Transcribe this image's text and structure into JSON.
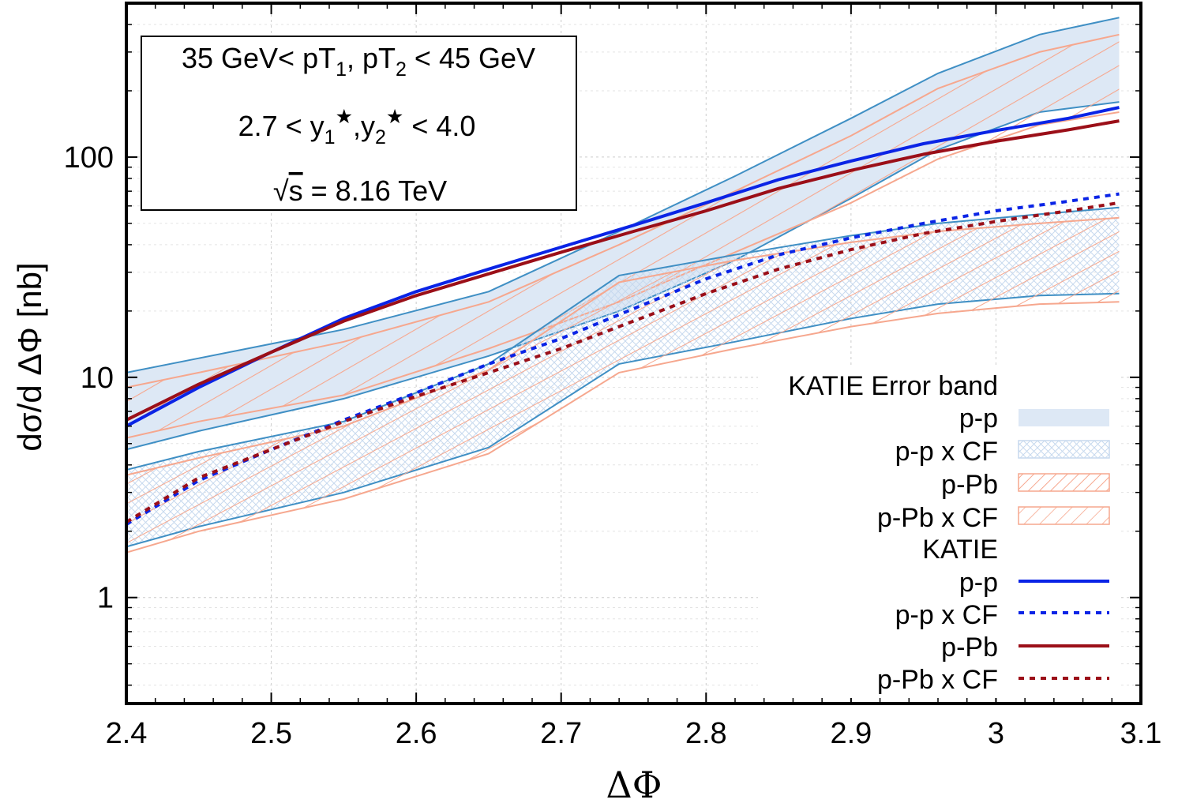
{
  "chart_data": {
    "type": "line",
    "title": "",
    "xlabel": "ΔΦ",
    "ylabel": "dσ/d ΔΦ [nb]",
    "xlim": [
      2.4,
      3.1
    ],
    "ylim": [
      0.33,
      500
    ],
    "yscale": "log",
    "grid": true,
    "x_ticks": [
      {
        "v": 2.4,
        "label": "2.4"
      },
      {
        "v": 2.5,
        "label": "2.5"
      },
      {
        "v": 2.6,
        "label": "2.6"
      },
      {
        "v": 2.7,
        "label": "2.7"
      },
      {
        "v": 2.8,
        "label": "2.8"
      },
      {
        "v": 2.9,
        "label": "2.9"
      },
      {
        "v": 3.0,
        "label": "3"
      },
      {
        "v": 3.1,
        "label": "3.1"
      }
    ],
    "y_ticks": [
      {
        "v": 1,
        "label": "1"
      },
      {
        "v": 10,
        "label": "10"
      },
      {
        "v": 100,
        "label": "100"
      }
    ],
    "info_box": {
      "line1": {
        "pre": "35 GeV< pT",
        "sub1": "1",
        "mid": ", pT",
        "sub2": "2",
        "post": " < 45 GeV"
      },
      "line2": {
        "pre": "2.7 < y",
        "sub1": "1",
        "sup1": "★",
        "mid": ",y",
        "sub2": "2",
        "sup2": "★",
        "post": " < 4.0"
      },
      "line3": {
        "sqrt": "√",
        "s": "s",
        "post": " = 8.16 TeV"
      }
    },
    "legend": {
      "position": "bottom-right",
      "band_header": "KATIE Error band",
      "line_header": "KATIE",
      "band_entries": [
        "p-p",
        "p-p x CF",
        "p-Pb",
        "p-Pb x CF"
      ],
      "line_entries": [
        "p-p",
        "p-p x CF",
        "p-Pb",
        "p-Pb x CF"
      ]
    },
    "colors": {
      "pp": "#0a24e6",
      "pPb": "#9b0f18",
      "band_fill": "#dde8f5",
      "band_edge": "#3f8fc4",
      "hatch": "#f6a78e",
      "crosshatch": "#c7d9ee"
    },
    "bands": [
      {
        "name": "p-p",
        "style": "fill",
        "x": [
          2.4,
          2.45,
          2.55,
          2.65,
          2.74,
          2.82,
          2.9,
          2.96,
          3.03,
          3.085
        ],
        "upper": [
          10.5,
          12.2,
          16.5,
          24.5,
          46,
          82,
          150,
          240,
          360,
          430
        ],
        "lower": [
          4.7,
          5.7,
          8.0,
          12.5,
          20,
          34,
          65,
          108,
          160,
          178
        ]
      },
      {
        "name": "p-Pb",
        "style": "hatch",
        "x": [
          2.4,
          2.45,
          2.55,
          2.65,
          2.74,
          2.82,
          2.9,
          2.96,
          3.03,
          3.085
        ],
        "upper": [
          9.0,
          10.5,
          14.5,
          22.0,
          40,
          70,
          125,
          205,
          300,
          360
        ],
        "lower": [
          5.3,
          6.3,
          8.3,
          13.5,
          22,
          37,
          62,
          98,
          140,
          160
        ]
      },
      {
        "name": "p-p x CF",
        "style": "crosshatch",
        "x": [
          2.4,
          2.45,
          2.55,
          2.65,
          2.74,
          2.82,
          2.9,
          2.96,
          3.03,
          3.085
        ],
        "upper": [
          3.8,
          4.6,
          6.3,
          11.5,
          29,
          36,
          44,
          50,
          55,
          59
        ],
        "lower": [
          1.7,
          2.1,
          3.0,
          4.8,
          11.5,
          14.5,
          18.5,
          21.5,
          23.5,
          24
        ]
      },
      {
        "name": "p-Pb x CF",
        "style": "hatch",
        "x": [
          2.4,
          2.45,
          2.55,
          2.65,
          2.74,
          2.82,
          2.9,
          2.96,
          3.03,
          3.085
        ],
        "upper": [
          3.6,
          4.3,
          6.0,
          10.8,
          27,
          34,
          41,
          46,
          50,
          53
        ],
        "lower": [
          1.6,
          2.0,
          2.8,
          4.5,
          10.5,
          13.5,
          17,
          19.5,
          21.5,
          22
        ]
      }
    ],
    "series": [
      {
        "name": "p-p",
        "style": "solid",
        "x": [
          2.4,
          2.45,
          2.5,
          2.55,
          2.6,
          2.65,
          2.7,
          2.75,
          2.8,
          2.85,
          2.9,
          2.95,
          3.0,
          3.05,
          3.085
        ],
        "values": [
          6.0,
          9.0,
          13.0,
          18.5,
          24.5,
          31,
          39,
          49,
          62,
          79,
          96,
          115,
          132,
          150,
          168
        ]
      },
      {
        "name": "p-Pb",
        "style": "solid",
        "x": [
          2.4,
          2.45,
          2.5,
          2.55,
          2.6,
          2.65,
          2.7,
          2.75,
          2.8,
          2.85,
          2.9,
          2.95,
          3.0,
          3.05,
          3.085
        ],
        "values": [
          6.4,
          9.3,
          13.0,
          18.0,
          23.5,
          29.5,
          37,
          46,
          57,
          72,
          87,
          103,
          118,
          133,
          146
        ]
      },
      {
        "name": "p-p x CF",
        "style": "dotted",
        "x": [
          2.4,
          2.45,
          2.5,
          2.55,
          2.6,
          2.65,
          2.7,
          2.75,
          2.8,
          2.85,
          2.9,
          2.95,
          3.0,
          3.05,
          3.085
        ],
        "values": [
          2.15,
          3.4,
          4.7,
          6.4,
          8.5,
          11.5,
          15.0,
          20.5,
          28,
          36,
          43,
          50,
          57,
          63,
          68
        ]
      },
      {
        "name": "p-Pb x CF",
        "style": "dotted",
        "x": [
          2.4,
          2.45,
          2.5,
          2.55,
          2.6,
          2.65,
          2.7,
          2.75,
          2.8,
          2.85,
          2.9,
          2.95,
          3.0,
          3.05,
          3.085
        ],
        "values": [
          2.2,
          3.5,
          4.7,
          6.3,
          8.2,
          10.5,
          13.5,
          18.0,
          24,
          31,
          38,
          45,
          51,
          57,
          62
        ]
      }
    ]
  }
}
